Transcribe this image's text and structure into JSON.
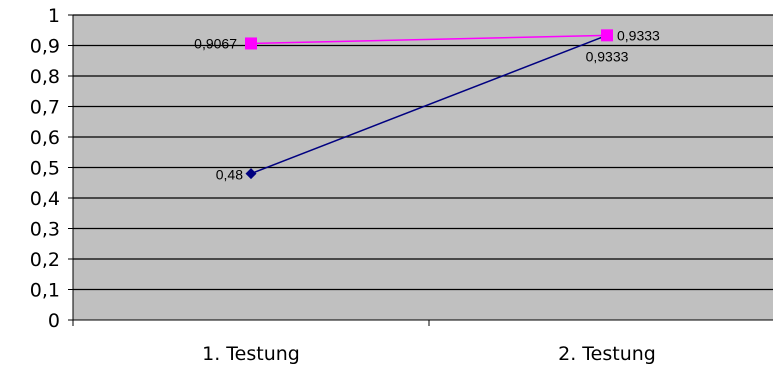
{
  "chart_data": {
    "type": "line",
    "categories": [
      "1. Testung",
      "2. Testung"
    ],
    "series": [
      {
        "values": [
          0.48,
          0.9333
        ],
        "labels": [
          "0,48",
          "0,9333"
        ],
        "color": "#000080",
        "marker": "diamond"
      },
      {
        "values": [
          0.9067,
          0.9333
        ],
        "labels": [
          "0,9067",
          "0,9333"
        ],
        "color": "#ff00ff",
        "marker": "square"
      }
    ],
    "ylim": [
      0,
      1
    ],
    "yticks": [
      0,
      0.1,
      0.2,
      0.3,
      0.4,
      0.5,
      0.6,
      0.7,
      0.8,
      0.9,
      1
    ],
    "ytick_labels": [
      "0",
      "0,1",
      "0,2",
      "0,3",
      "0,4",
      "0,5",
      "0,6",
      "0,7",
      "0,8",
      "0,9",
      "1"
    ],
    "grid": true,
    "plot_background": "#c0c0c0",
    "gridline_color": "#000000"
  }
}
